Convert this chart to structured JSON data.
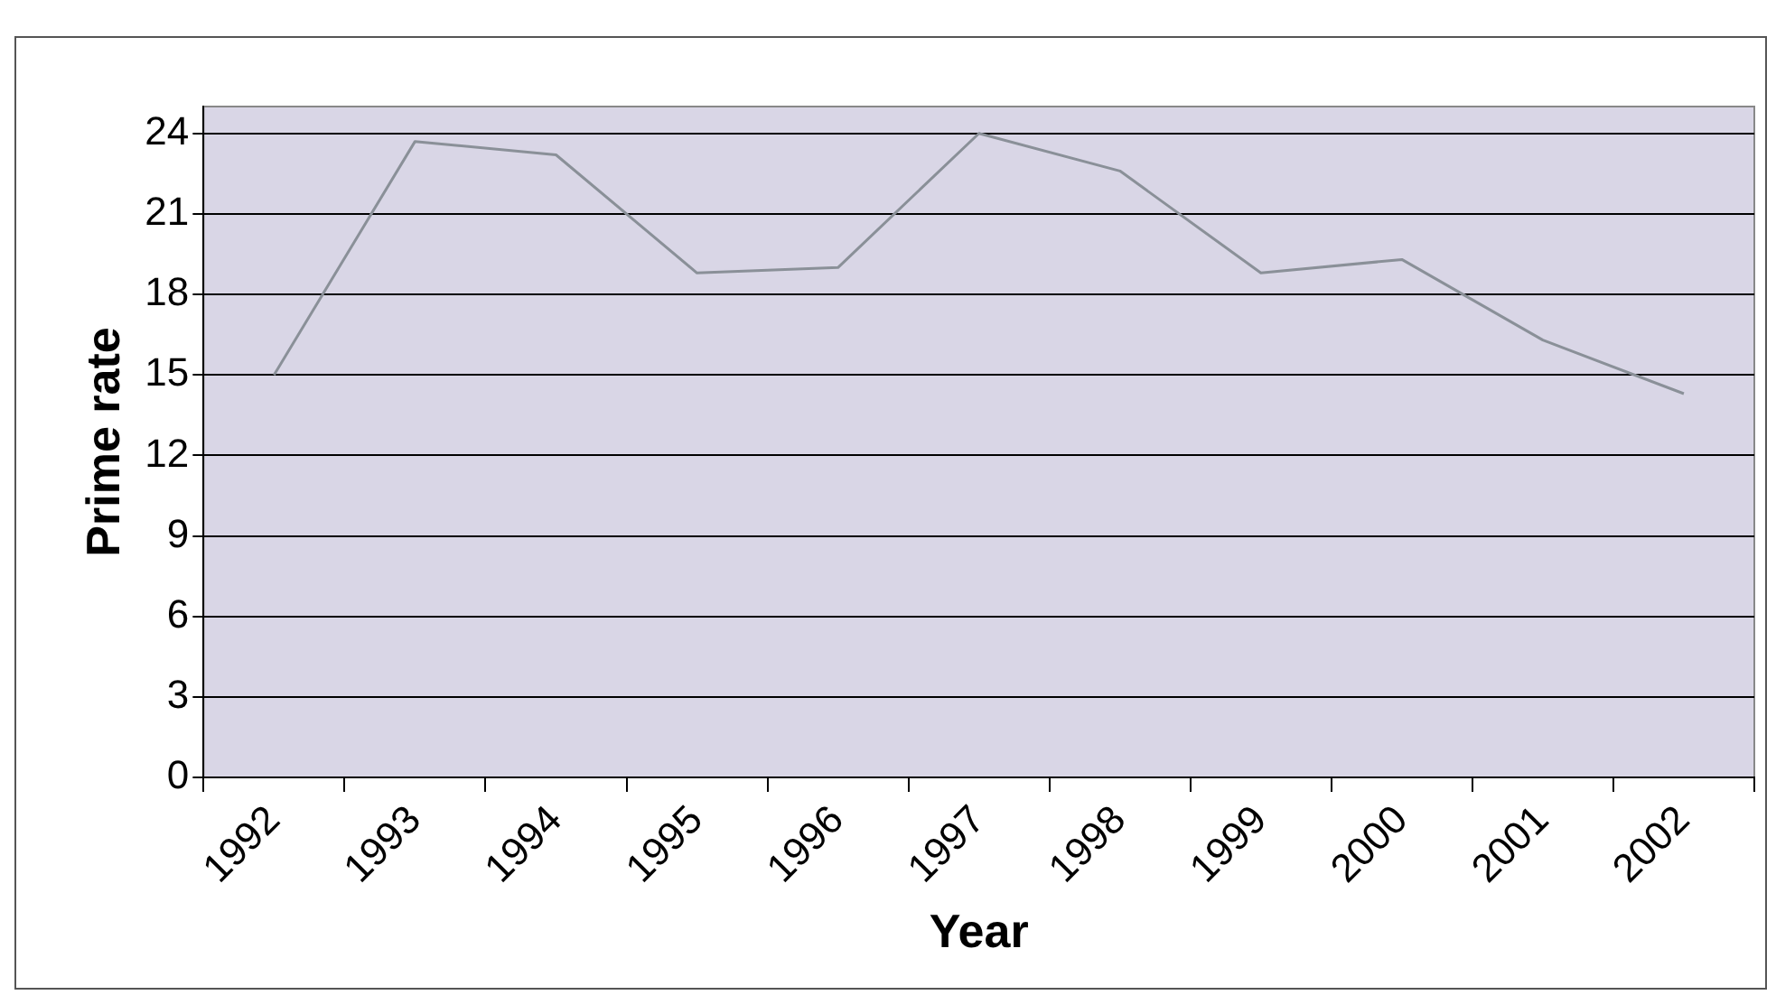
{
  "chart_data": {
    "type": "line",
    "xlabel": "Year",
    "ylabel": "Prime rate",
    "categories": [
      "1992",
      "1993",
      "1994",
      "1995",
      "1996",
      "1997",
      "1998",
      "1999",
      "2000",
      "2001",
      "2002"
    ],
    "series": [
      {
        "color": "#8a9098",
        "values": [
          15,
          23.7,
          23.2,
          18.8,
          19,
          24,
          22.6,
          18.8,
          19.3,
          16.3,
          14.3
        ]
      }
    ],
    "ylim": [
      0,
      25
    ],
    "yticks": [
      0,
      3,
      6,
      9,
      12,
      15,
      18,
      21,
      24
    ],
    "grid": "y",
    "legend": false,
    "marker": "none",
    "line_style": "solid"
  }
}
